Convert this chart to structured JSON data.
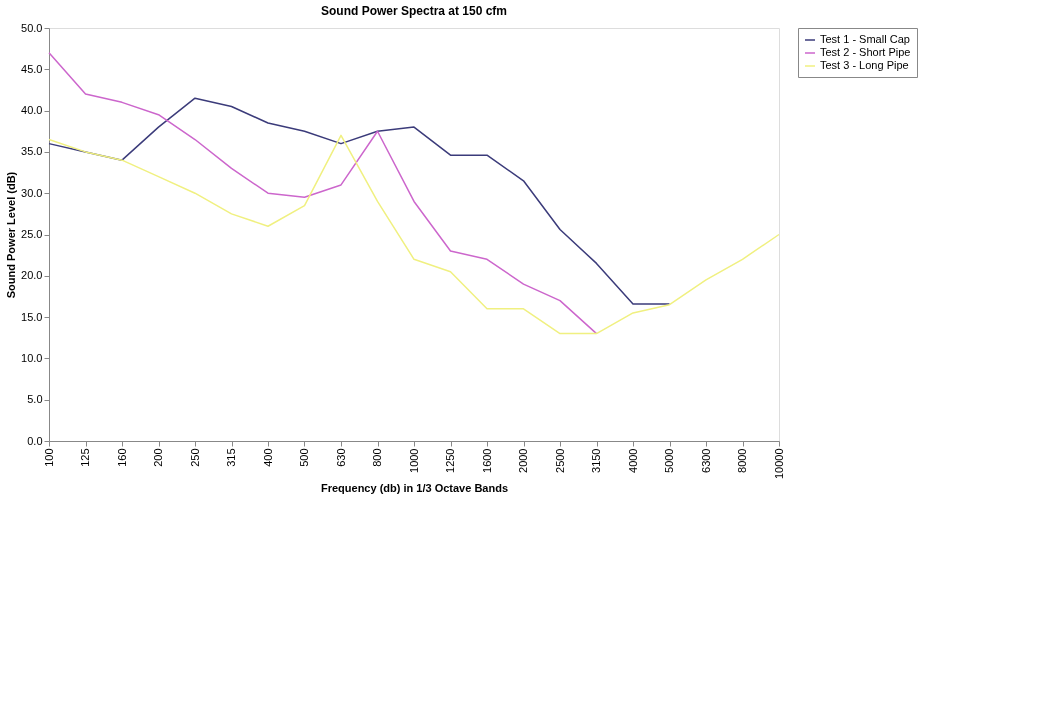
{
  "chart_data": {
    "type": "line",
    "title": "Sound Power Spectra at 150 cfm",
    "xlabel": "Frequency (db) in 1/3 Octave Bands",
    "ylabel": "Sound Power Level (dB)",
    "categories": [
      "100",
      "125",
      "160",
      "200",
      "250",
      "315",
      "400",
      "500",
      "630",
      "800",
      "1000",
      "1250",
      "1600",
      "2000",
      "2500",
      "3150",
      "4000",
      "5000",
      "6300",
      "8000",
      "10000"
    ],
    "series": [
      {
        "name": "Test 1 - Small Cap",
        "color": "#3b3b7a",
        "values": [
          36.0,
          35.0,
          34.0,
          38.0,
          41.5,
          40.5,
          38.5,
          37.5,
          36.0,
          37.5,
          38.0,
          34.6,
          34.6,
          31.5,
          25.6,
          21.5,
          16.6,
          16.6,
          null,
          null,
          null
        ]
      },
      {
        "name": "Test 2 - Short Pipe",
        "color": "#cc66cc",
        "values": [
          47.0,
          42.0,
          41.0,
          39.5,
          36.5,
          33.0,
          30.0,
          29.5,
          31.0,
          37.5,
          29.0,
          23.0,
          22.0,
          19.0,
          17.0,
          13.0,
          null,
          null,
          null,
          null,
          null
        ]
      },
      {
        "name": "Test 3 - Long Pipe",
        "color": "#f0f080",
        "values": [
          36.5,
          35.0,
          34.0,
          32.0,
          30.0,
          27.5,
          26.0,
          28.5,
          37.0,
          29.0,
          22.0,
          20.5,
          16.0,
          16.0,
          13.0,
          13.0,
          15.5,
          16.5,
          19.5,
          22.0,
          25.0
        ]
      }
    ],
    "ylim": [
      0,
      50
    ],
    "yticks": [
      {
        "value": 0,
        "label": "0.0"
      },
      {
        "value": 5,
        "label": "5.0"
      },
      {
        "value": 10,
        "label": "10.0"
      },
      {
        "value": 15,
        "label": "15.0"
      },
      {
        "value": 20,
        "label": "20.0"
      },
      {
        "value": 25,
        "label": "25.0"
      },
      {
        "value": 30,
        "label": "30.0"
      },
      {
        "value": 35,
        "label": "35.0"
      },
      {
        "value": 40,
        "label": "40.0"
      },
      {
        "value": 45,
        "label": "45.0"
      },
      {
        "value": 50,
        "label": "50.0"
      }
    ],
    "grid": false,
    "legend": "right",
    "marker": "none",
    "line_style": "solid"
  }
}
